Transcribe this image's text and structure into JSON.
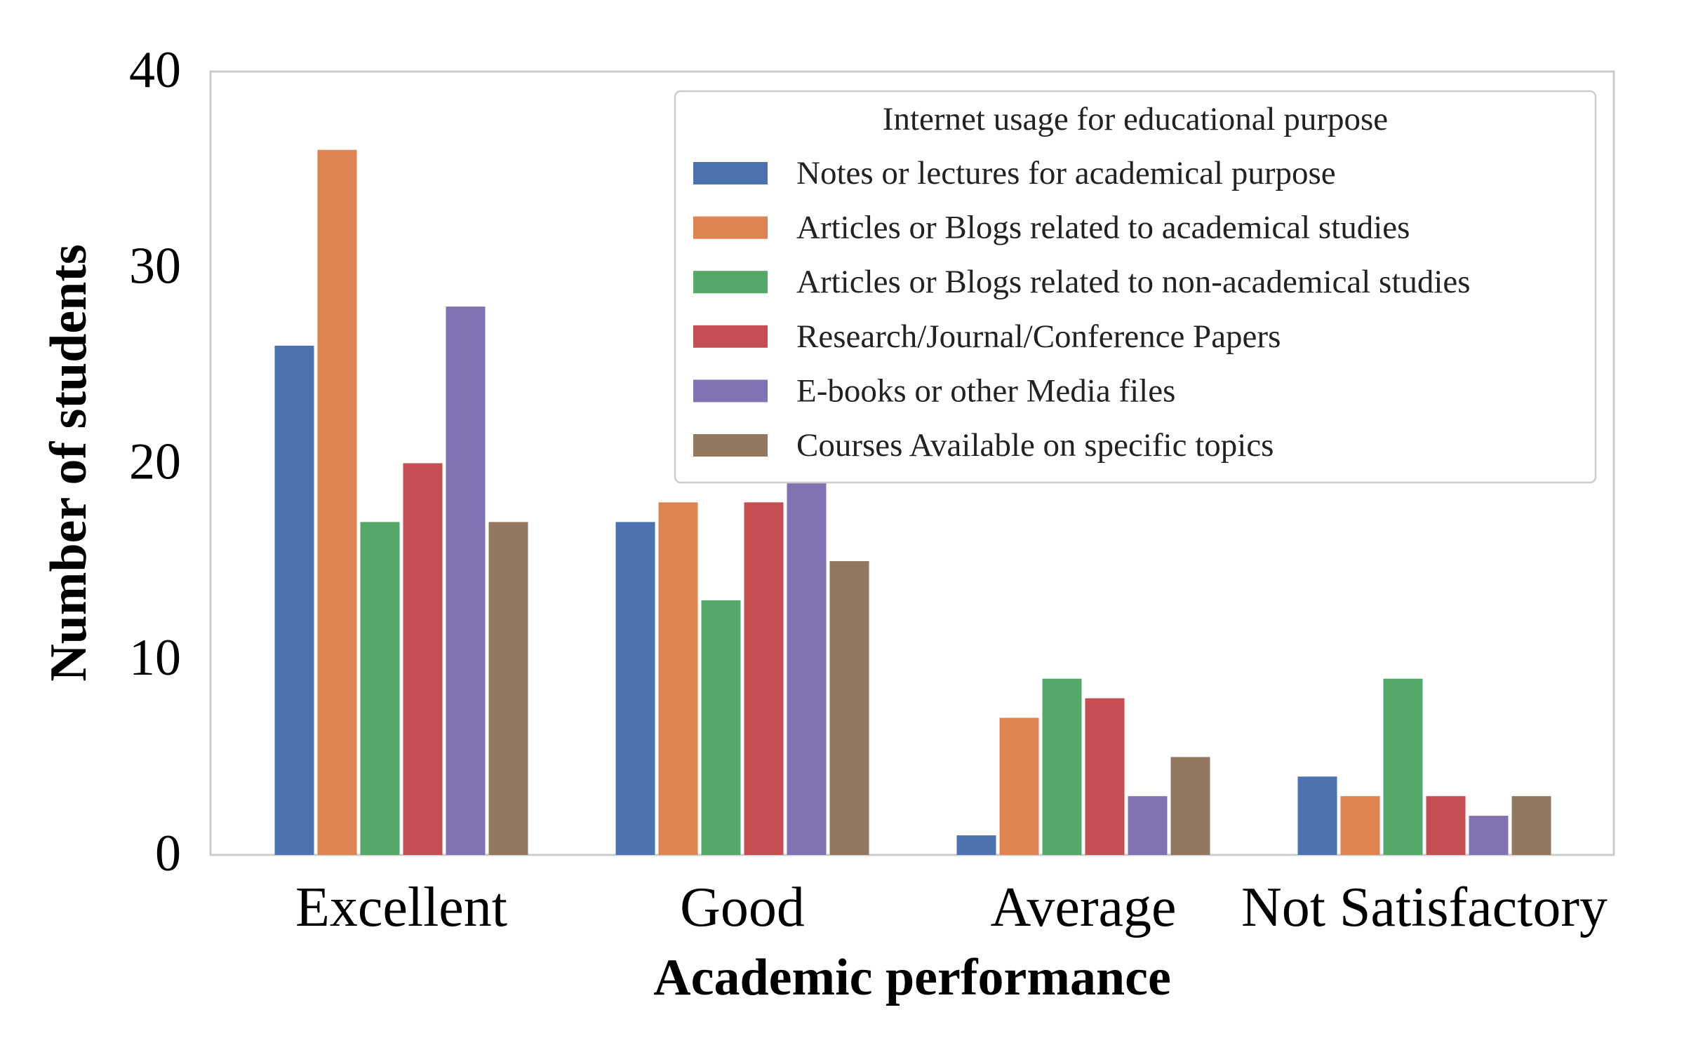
{
  "chart_data": {
    "type": "bar",
    "xlabel": "Academic performance",
    "ylabel": "Number of students",
    "categories": [
      "Excellent",
      "Good",
      "Average",
      "Not Satisfactory"
    ],
    "ylim": [
      0,
      40
    ],
    "yticks": [
      0,
      10,
      20,
      30,
      40
    ],
    "grid": false,
    "legend": {
      "title": "Internet usage for educational purpose",
      "placement": "top-right"
    },
    "series": [
      {
        "name": "Notes or lectures for academical purpose",
        "color": "#4C72B0",
        "values": [
          26,
          17,
          1,
          4
        ]
      },
      {
        "name": "Articles or Blogs related to academical studies",
        "color": "#DD8452",
        "values": [
          36,
          18,
          7,
          3
        ]
      },
      {
        "name": "Articles or Blogs related to non-academical studies",
        "color": "#55A868",
        "values": [
          17,
          13,
          9,
          9
        ]
      },
      {
        "name": "Research/Journal/Conference Papers",
        "color": "#C44E52",
        "values": [
          20,
          18,
          8,
          3
        ]
      },
      {
        "name": "E-books or other Media files",
        "color": "#8172B3",
        "values": [
          28,
          19,
          3,
          2
        ]
      },
      {
        "name": "Courses Available on specific topics",
        "color": "#937860",
        "values": [
          17,
          15,
          5,
          3
        ]
      }
    ]
  }
}
